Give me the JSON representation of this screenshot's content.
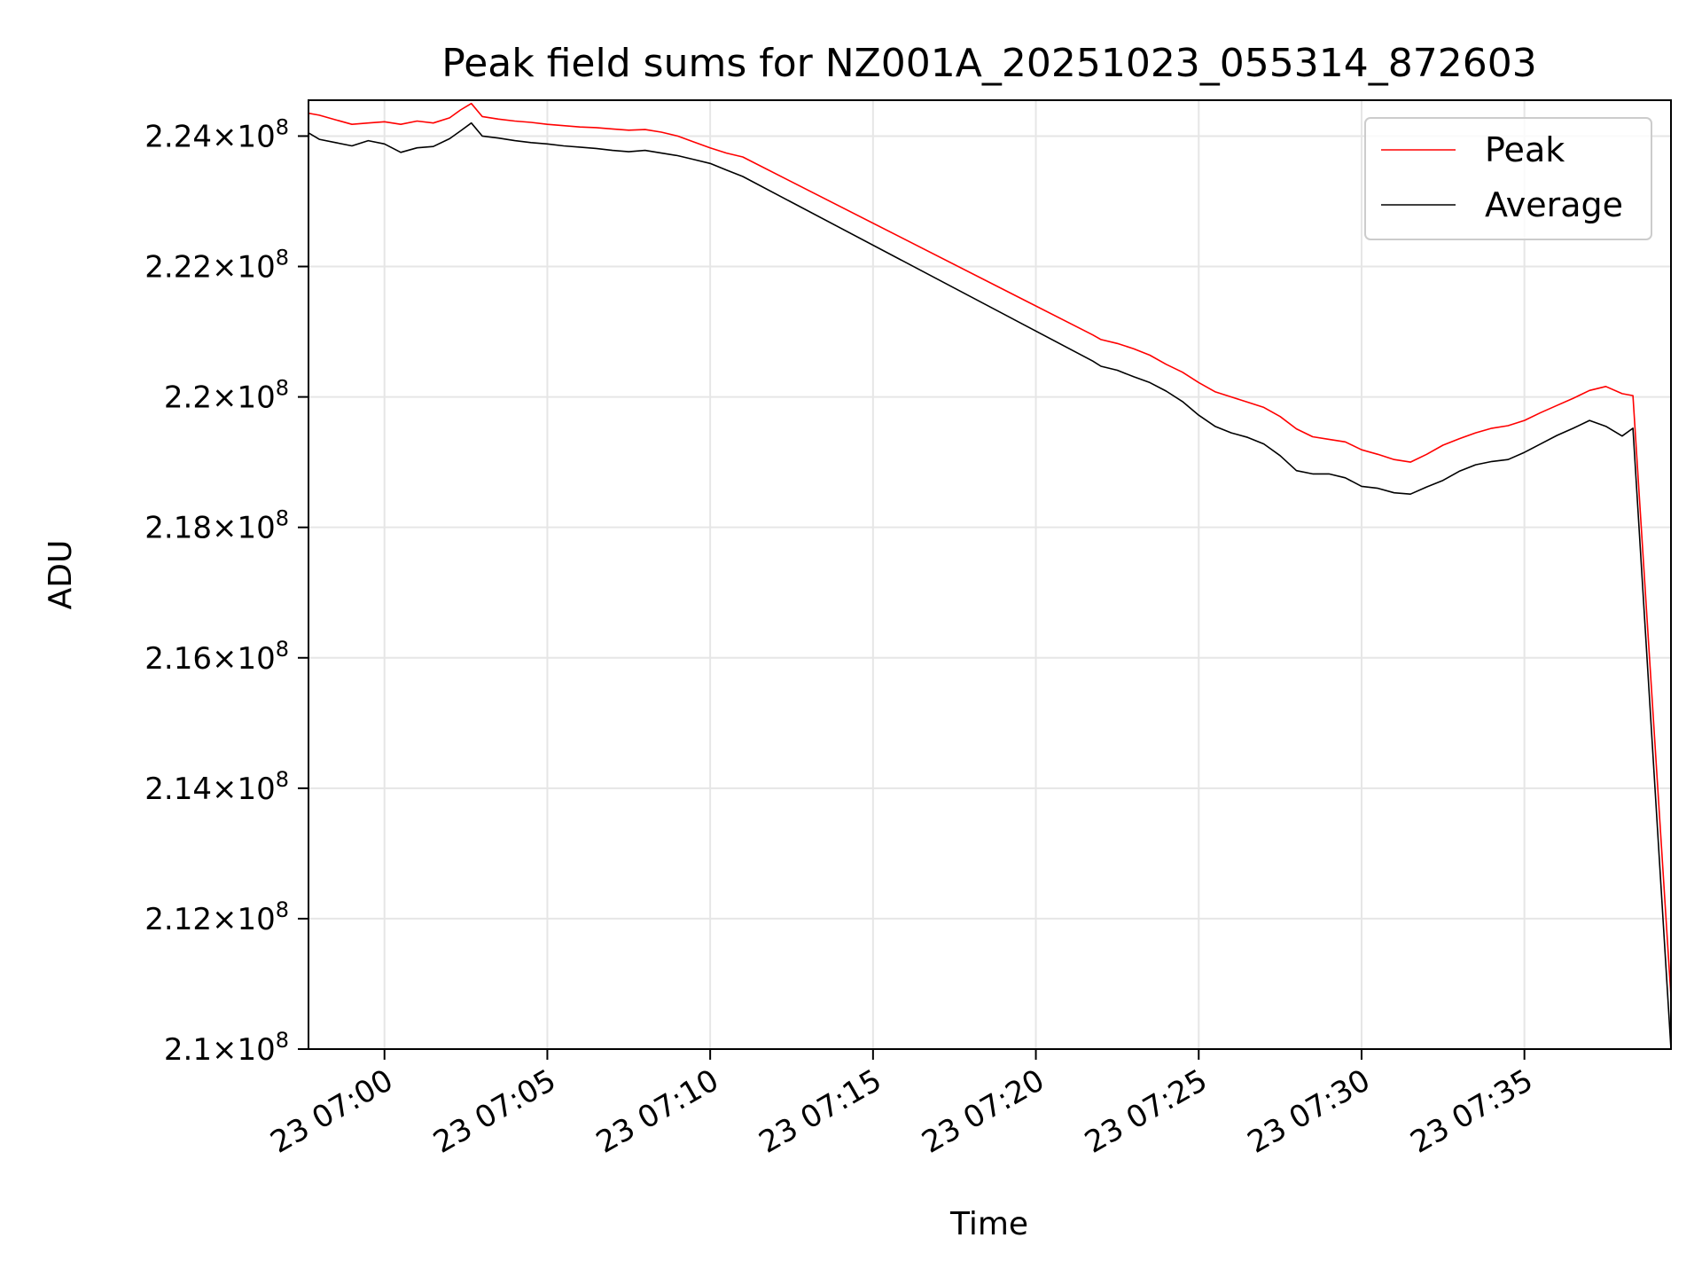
{
  "chart_data": {
    "type": "line",
    "title": "Peak field sums for NZ001A_20251023_055314_872603",
    "xlabel": "Time",
    "ylabel": "ADU",
    "x_tick_labels": [
      "23 07:00",
      "23 07:05",
      "23 07:10",
      "23 07:15",
      "23 07:20",
      "23 07:25",
      "23 07:30",
      "23 07:35"
    ],
    "y_tick_labels": [
      {
        "mantissa": "2.1",
        "exp": "8"
      },
      {
        "mantissa": "2.12",
        "exp": "8"
      },
      {
        "mantissa": "2.14",
        "exp": "8"
      },
      {
        "mantissa": "2.16",
        "exp": "8"
      },
      {
        "mantissa": "2.18",
        "exp": "8"
      },
      {
        "mantissa": "2.2",
        "exp": "8"
      },
      {
        "mantissa": "2.22",
        "exp": "8"
      },
      {
        "mantissa": "2.24",
        "exp": "8"
      }
    ],
    "y_ticks": [
      210000000,
      212000000,
      214000000,
      216000000,
      218000000,
      220000000,
      222000000,
      224000000
    ],
    "x_ticks": [
      "2025-10-23T07:00",
      "2025-10-23T07:05",
      "2025-10-23T07:10",
      "2025-10-23T07:15",
      "2025-10-23T07:20",
      "2025-10-23T07:25",
      "2025-10-23T07:30",
      "2025-10-23T07:35"
    ],
    "xlim": [
      "2025-10-23T06:57:40",
      "2025-10-23T07:39:30"
    ],
    "ylim": [
      210000000,
      224550000
    ],
    "grid": true,
    "legend_position": "top-right",
    "series": [
      {
        "name": "Peak",
        "color": "#ff0000",
        "x": [
          "2025-10-23T06:57:40",
          "2025-10-23T06:58:00",
          "2025-10-23T06:58:30",
          "2025-10-23T06:59:00",
          "2025-10-23T06:59:30",
          "2025-10-23T07:00:00",
          "2025-10-23T07:00:30",
          "2025-10-23T07:01:00",
          "2025-10-23T07:01:30",
          "2025-10-23T07:02:00",
          "2025-10-23T07:02:20",
          "2025-10-23T07:02:40",
          "2025-10-23T07:03:00",
          "2025-10-23T07:03:30",
          "2025-10-23T07:04:00",
          "2025-10-23T07:04:30",
          "2025-10-23T07:05:00",
          "2025-10-23T07:05:30",
          "2025-10-23T07:06:00",
          "2025-10-23T07:06:30",
          "2025-10-23T07:07:00",
          "2025-10-23T07:07:30",
          "2025-10-23T07:08:00",
          "2025-10-23T07:08:30",
          "2025-10-23T07:09:00",
          "2025-10-23T07:09:30",
          "2025-10-23T07:10:00",
          "2025-10-23T07:10:30",
          "2025-10-23T07:11:00",
          "2025-10-23T07:21:45",
          "2025-10-23T07:22:00",
          "2025-10-23T07:22:30",
          "2025-10-23T07:23:00",
          "2025-10-23T07:23:30",
          "2025-10-23T07:24:00",
          "2025-10-23T07:24:30",
          "2025-10-23T07:25:00",
          "2025-10-23T07:25:30",
          "2025-10-23T07:26:00",
          "2025-10-23T07:26:30",
          "2025-10-23T07:27:00",
          "2025-10-23T07:27:30",
          "2025-10-23T07:28:00",
          "2025-10-23T07:28:30",
          "2025-10-23T07:29:00",
          "2025-10-23T07:29:30",
          "2025-10-23T07:30:00",
          "2025-10-23T07:30:30",
          "2025-10-23T07:31:00",
          "2025-10-23T07:31:30",
          "2025-10-23T07:32:00",
          "2025-10-23T07:32:30",
          "2025-10-23T07:33:00",
          "2025-10-23T07:33:30",
          "2025-10-23T07:34:00",
          "2025-10-23T07:34:30",
          "2025-10-23T07:35:00",
          "2025-10-23T07:35:30",
          "2025-10-23T07:36:00",
          "2025-10-23T07:36:30",
          "2025-10-23T07:37:00",
          "2025-10-23T07:37:30",
          "2025-10-23T07:38:00",
          "2025-10-23T07:38:20",
          "2025-10-23T07:39:30"
        ],
        "values": [
          224350000,
          224320000,
          224250000,
          224180000,
          224200000,
          224220000,
          224180000,
          224230000,
          224200000,
          224280000,
          224400000,
          224500000,
          224300000,
          224260000,
          224230000,
          224210000,
          224180000,
          224160000,
          224140000,
          224130000,
          224110000,
          224090000,
          224100000,
          224060000,
          224000000,
          223910000,
          223820000,
          223740000,
          223680000,
          220950000,
          220880000,
          220820000,
          220740000,
          220640000,
          220500000,
          220380000,
          220220000,
          220080000,
          220000000,
          219920000,
          219840000,
          219700000,
          219510000,
          219390000,
          219350000,
          219310000,
          219190000,
          219120000,
          219040000,
          219000000,
          219120000,
          219260000,
          219360000,
          219450000,
          219520000,
          219560000,
          219640000,
          219760000,
          219870000,
          219980000,
          220100000,
          220160000,
          220050000,
          220020000,
          210800000
        ]
      },
      {
        "name": "Average",
        "color": "#000000",
        "x": [
          "2025-10-23T06:57:40",
          "2025-10-23T06:58:00",
          "2025-10-23T06:58:30",
          "2025-10-23T06:59:00",
          "2025-10-23T06:59:30",
          "2025-10-23T07:00:00",
          "2025-10-23T07:00:30",
          "2025-10-23T07:01:00",
          "2025-10-23T07:01:30",
          "2025-10-23T07:02:00",
          "2025-10-23T07:02:20",
          "2025-10-23T07:02:40",
          "2025-10-23T07:03:00",
          "2025-10-23T07:03:30",
          "2025-10-23T07:04:00",
          "2025-10-23T07:04:30",
          "2025-10-23T07:05:00",
          "2025-10-23T07:05:30",
          "2025-10-23T07:06:00",
          "2025-10-23T07:06:30",
          "2025-10-23T07:07:00",
          "2025-10-23T07:07:30",
          "2025-10-23T07:08:00",
          "2025-10-23T07:08:30",
          "2025-10-23T07:09:00",
          "2025-10-23T07:09:30",
          "2025-10-23T07:10:00",
          "2025-10-23T07:10:30",
          "2025-10-23T07:11:00",
          "2025-10-23T07:21:45",
          "2025-10-23T07:22:00",
          "2025-10-23T07:22:30",
          "2025-10-23T07:23:00",
          "2025-10-23T07:23:30",
          "2025-10-23T07:24:00",
          "2025-10-23T07:24:30",
          "2025-10-23T07:25:00",
          "2025-10-23T07:25:30",
          "2025-10-23T07:26:00",
          "2025-10-23T07:26:30",
          "2025-10-23T07:27:00",
          "2025-10-23T07:27:30",
          "2025-10-23T07:28:00",
          "2025-10-23T07:28:30",
          "2025-10-23T07:29:00",
          "2025-10-23T07:29:30",
          "2025-10-23T07:30:00",
          "2025-10-23T07:30:30",
          "2025-10-23T07:31:00",
          "2025-10-23T07:31:30",
          "2025-10-23T07:32:00",
          "2025-10-23T07:32:30",
          "2025-10-23T07:33:00",
          "2025-10-23T07:33:30",
          "2025-10-23T07:34:00",
          "2025-10-23T07:34:30",
          "2025-10-23T07:35:00",
          "2025-10-23T07:35:30",
          "2025-10-23T07:36:00",
          "2025-10-23T07:36:30",
          "2025-10-23T07:37:00",
          "2025-10-23T07:37:30",
          "2025-10-23T07:38:00",
          "2025-10-23T07:38:20",
          "2025-10-23T07:39:30"
        ],
        "values": [
          224050000,
          223950000,
          223900000,
          223850000,
          223930000,
          223880000,
          223750000,
          223820000,
          223840000,
          223960000,
          224080000,
          224200000,
          224000000,
          223970000,
          223930000,
          223900000,
          223880000,
          223850000,
          223830000,
          223810000,
          223780000,
          223760000,
          223780000,
          223740000,
          223700000,
          223640000,
          223580000,
          223480000,
          223380000,
          220550000,
          220470000,
          220410000,
          220310000,
          220220000,
          220090000,
          219930000,
          219720000,
          219550000,
          219450000,
          219380000,
          219280000,
          219100000,
          218870000,
          218820000,
          218820000,
          218760000,
          218630000,
          218600000,
          218530000,
          218510000,
          218620000,
          218720000,
          218860000,
          218960000,
          219010000,
          219040000,
          219150000,
          219280000,
          219410000,
          219520000,
          219640000,
          219550000,
          219400000,
          219520000,
          210000000
        ]
      }
    ]
  }
}
